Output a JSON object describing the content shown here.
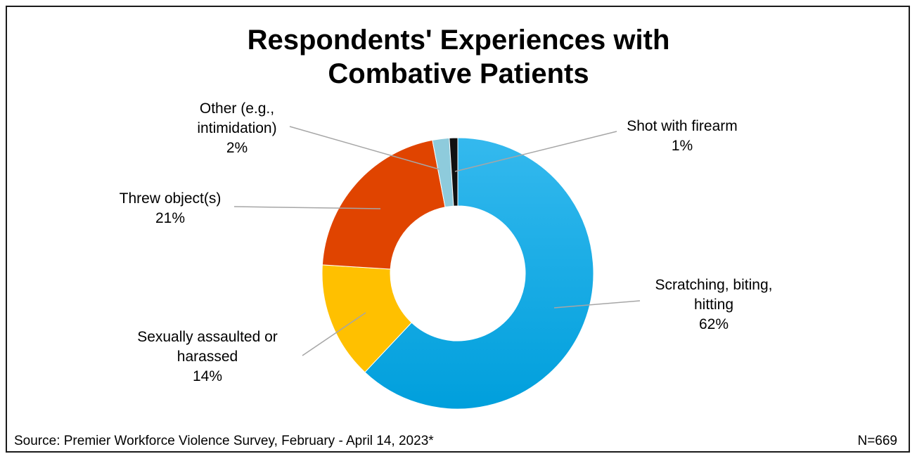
{
  "chart_data": {
    "type": "pie",
    "variant": "donut",
    "title_line1": "Respondents' Experiences with",
    "title_line2": "Combative Patients",
    "slices": [
      {
        "label_lines": [
          "Scratching, biting,",
          "hitting"
        ],
        "pct_label": "62%",
        "value": 62,
        "color": "#1aa9e2"
      },
      {
        "label_lines": [
          "Sexually assaulted or",
          "harassed"
        ],
        "pct_label": "14%",
        "value": 14,
        "color": "#ffc000"
      },
      {
        "label_lines": [
          "Threw object(s)"
        ],
        "pct_label": "21%",
        "value": 21,
        "color": "#e04400"
      },
      {
        "label_lines": [
          "Other (e.g.,",
          "intimidation)"
        ],
        "pct_label": "2%",
        "value": 2,
        "color": "#8ecbdc"
      },
      {
        "label_lines": [
          "Shot with firearm"
        ],
        "pct_label": "1%",
        "value": 1,
        "color": "#111111"
      }
    ],
    "start": "top, clockwise"
  },
  "footer": {
    "source": "Source: Premier Workforce Violence Survey, February - April 14, 2023*",
    "n": "N=669"
  }
}
